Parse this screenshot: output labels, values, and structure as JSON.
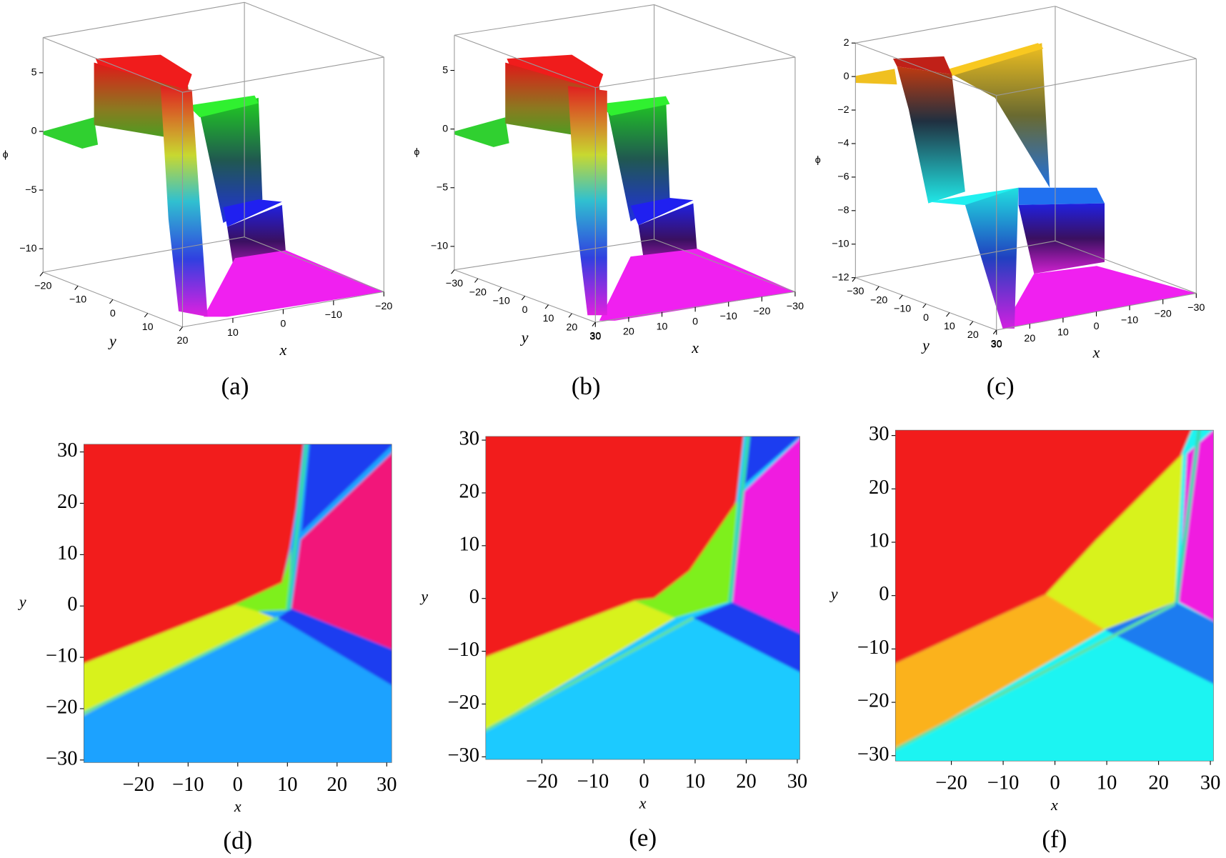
{
  "chart_data": [
    {
      "type": "surface3d",
      "caption": "(a)",
      "xlabel": "x",
      "ylabel": "y",
      "zlabel": "ϕ",
      "xlim": [
        -20,
        20
      ],
      "ylim": [
        -20,
        20
      ],
      "zlim": [
        -12,
        8
      ],
      "xticks": [
        10,
        0,
        {
          "value": -10,
          "label": "−10"
        },
        {
          "value": -20,
          "label": "−20"
        }
      ],
      "yticks": [
        {
          "value": -20,
          "label": "−20"
        },
        {
          "value": -10,
          "label": "−10"
        },
        0,
        10,
        20
      ],
      "zticks": [
        5,
        0,
        {
          "value": -5,
          "label": "−5"
        },
        {
          "value": -10,
          "label": "−10"
        }
      ]
    },
    {
      "type": "surface3d",
      "caption": "(b)",
      "xlabel": "x",
      "ylabel": "y",
      "zlabel": "ϕ",
      "xlim": [
        -30,
        30
      ],
      "ylim": [
        -30,
        30
      ],
      "zlim": [
        -12,
        8
      ],
      "xticks": [
        30,
        20,
        10,
        0,
        {
          "value": -10,
          "label": "−10"
        },
        {
          "value": -20,
          "label": "−20"
        },
        {
          "value": -30,
          "label": "−30"
        }
      ],
      "yticks": [
        {
          "value": -30,
          "label": "−30"
        },
        {
          "value": -20,
          "label": "−20"
        },
        {
          "value": -10,
          "label": "−10"
        },
        0,
        10,
        20,
        30
      ],
      "zticks": [
        5,
        0,
        {
          "value": -5,
          "label": "−5"
        },
        {
          "value": -10,
          "label": "−10"
        }
      ]
    },
    {
      "type": "surface3d",
      "caption": "(c)",
      "xlabel": "x",
      "ylabel": "y",
      "zlabel": "ϕ",
      "xlim": [
        -30,
        30
      ],
      "ylim": [
        -30,
        30
      ],
      "zlim": [
        -12,
        2
      ],
      "xticks": [
        30,
        20,
        10,
        0,
        {
          "value": -10,
          "label": "−10"
        },
        {
          "value": -20,
          "label": "−20"
        },
        {
          "value": -30,
          "label": "−30"
        }
      ],
      "yticks": [
        {
          "value": -30,
          "label": "−30"
        },
        {
          "value": -20,
          "label": "−20"
        },
        {
          "value": -10,
          "label": "−10"
        },
        0,
        10,
        20,
        30
      ],
      "zticks": [
        2,
        0,
        {
          "value": -2,
          "label": "−2"
        },
        {
          "value": -4,
          "label": "−4"
        },
        {
          "value": -6,
          "label": "−6"
        },
        {
          "value": -8,
          "label": "−8"
        },
        {
          "value": -10,
          "label": "−10"
        },
        {
          "value": -12,
          "label": "−12"
        }
      ]
    },
    {
      "type": "density",
      "caption": "(d)",
      "xlabel": "x",
      "ylabel": "y",
      "xlim": [
        -31,
        31
      ],
      "ylim": [
        -30.5,
        31.5
      ],
      "xticks": [
        {
          "value": -20,
          "label": "−20"
        },
        {
          "value": -10,
          "label": "−10"
        },
        0,
        10,
        20,
        30
      ],
      "yticks": [
        {
          "value": -30,
          "label": "−30"
        },
        {
          "value": -20,
          "label": "−20"
        },
        {
          "value": -10,
          "label": "−10"
        },
        0,
        10,
        20,
        30
      ]
    },
    {
      "type": "density",
      "caption": "(e)",
      "xlabel": "x",
      "ylabel": "y",
      "xlim": [
        -31,
        30.5
      ],
      "ylim": [
        -30.5,
        30.7
      ],
      "xticks": [
        {
          "value": -20,
          "label": "−20"
        },
        {
          "value": -10,
          "label": "−10"
        },
        0,
        10,
        20,
        30
      ],
      "yticks": [
        {
          "value": -30,
          "label": "−30"
        },
        {
          "value": -20,
          "label": "−20"
        },
        {
          "value": -10,
          "label": "−10"
        },
        0,
        10,
        20,
        30
      ]
    },
    {
      "type": "density",
      "caption": "(f)",
      "xlabel": "x",
      "ylabel": "y",
      "xlim": [
        -30.8,
        30.6
      ],
      "ylim": [
        -31,
        31
      ],
      "xticks": [
        {
          "value": -20,
          "label": "−20"
        },
        {
          "value": -10,
          "label": "−10"
        },
        0,
        10,
        20,
        30
      ],
      "yticks": [
        {
          "value": -30,
          "label": "−30"
        },
        {
          "value": -20,
          "label": "−20"
        },
        {
          "value": -10,
          "label": "−10"
        },
        0,
        10,
        20,
        30
      ]
    }
  ]
}
